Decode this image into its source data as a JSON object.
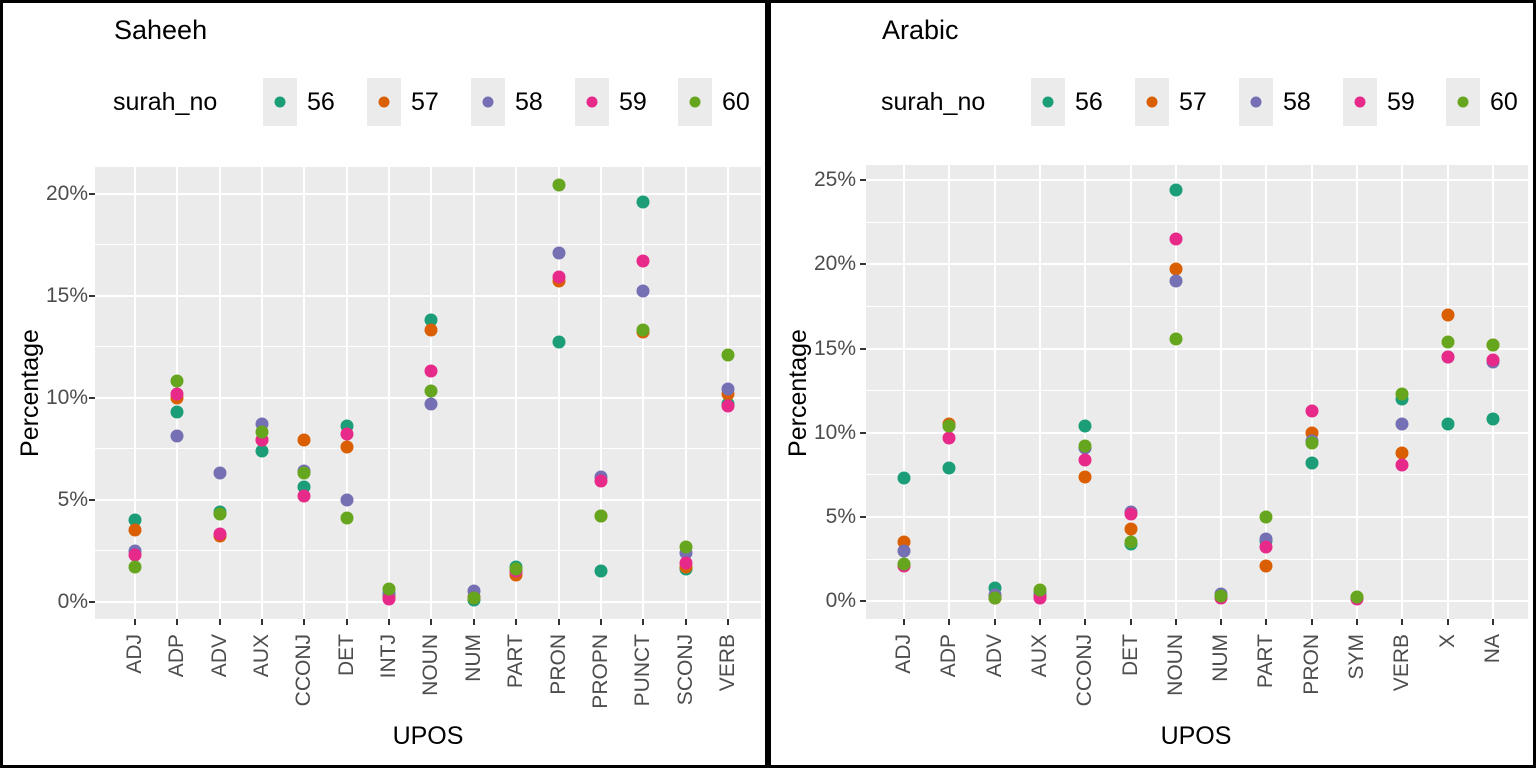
{
  "chart_data": [
    {
      "type": "scatter",
      "title": "Saheeh",
      "xlabel": "UPOS",
      "ylabel": "Percentage",
      "legend_title": "surah_no",
      "legend_position": "top",
      "grid": "on",
      "panel_bg": "#EBEBEB",
      "categories": [
        "ADJ",
        "ADP",
        "ADV",
        "AUX",
        "CCONJ",
        "DET",
        "INTJ",
        "NOUN",
        "NUM",
        "PART",
        "PRON",
        "PROPN",
        "PUNCT",
        "SCONJ",
        "VERB"
      ],
      "y_ticks": [
        "0%",
        "5%",
        "10%",
        "15%",
        "20%"
      ],
      "y_tick_values": [
        0,
        5,
        10,
        15,
        20
      ],
      "y_minor_step": 2.5,
      "ylim": [
        -0.85,
        21.3
      ],
      "series": [
        {
          "name": "56",
          "color": "#1B9E77",
          "values": [
            4.0,
            9.3,
            4.4,
            7.4,
            5.6,
            8.6,
            0.3,
            13.8,
            0.1,
            1.7,
            12.7,
            1.5,
            19.6,
            1.6,
            9.7
          ]
        },
        {
          "name": "57",
          "color": "#D95F02",
          "values": [
            3.5,
            10.0,
            3.2,
            7.9,
            7.9,
            7.6,
            0.3,
            13.3,
            0.25,
            1.3,
            15.7,
            4.2,
            13.2,
            1.7,
            10.2
          ]
        },
        {
          "name": "58",
          "color": "#7570B3",
          "values": [
            2.5,
            8.1,
            6.3,
            8.7,
            6.4,
            5.0,
            0.4,
            9.7,
            0.5,
            1.5,
            17.1,
            6.1,
            15.2,
            2.4,
            10.4
          ]
        },
        {
          "name": "59",
          "color": "#E7298A",
          "values": [
            2.3,
            10.2,
            3.3,
            7.9,
            5.2,
            8.2,
            0.15,
            11.3,
            0.2,
            1.5,
            15.9,
            5.9,
            16.7,
            1.9,
            9.6
          ]
        },
        {
          "name": "60",
          "color": "#66A61E",
          "values": [
            1.7,
            10.8,
            4.3,
            8.3,
            6.3,
            4.1,
            0.6,
            10.3,
            0.2,
            1.6,
            20.4,
            4.2,
            13.3,
            2.7,
            12.1
          ]
        }
      ]
    },
    {
      "type": "scatter",
      "title": "Arabic",
      "xlabel": "UPOS",
      "ylabel": "Percentage",
      "legend_title": "surah_no",
      "legend_position": "top",
      "grid": "on",
      "panel_bg": "#EBEBEB",
      "categories": [
        "ADJ",
        "ADP",
        "ADV",
        "AUX",
        "CCONJ",
        "DET",
        "NOUN",
        "NUM",
        "PART",
        "PRON",
        "SYM",
        "VERB",
        "X",
        "NA"
      ],
      "y_ticks": [
        "0%",
        "5%",
        "10%",
        "15%",
        "20%",
        "25%"
      ],
      "y_tick_values": [
        0,
        5,
        10,
        15,
        20,
        25
      ],
      "y_minor_step": 2.5,
      "ylim": [
        -1.05,
        25.9
      ],
      "series": [
        {
          "name": "56",
          "color": "#1B9E77",
          "values": [
            7.3,
            7.9,
            0.8,
            0.3,
            10.4,
            3.4,
            24.4,
            0.3,
            3.6,
            8.2,
            0.2,
            12.0,
            10.5,
            10.8
          ]
        },
        {
          "name": "57",
          "color": "#D95F02",
          "values": [
            3.5,
            10.5,
            0.2,
            0.3,
            7.4,
            4.3,
            19.7,
            0.3,
            2.1,
            10.0,
            0.2,
            8.8,
            17.0,
            15.2
          ]
        },
        {
          "name": "58",
          "color": "#7570B3",
          "values": [
            3.0,
            10.4,
            0.4,
            0.5,
            9.1,
            5.3,
            19.0,
            0.45,
            3.7,
            9.5,
            0.2,
            10.5,
            14.5,
            14.2
          ]
        },
        {
          "name": "59",
          "color": "#E7298A",
          "values": [
            2.1,
            9.7,
            0.2,
            0.2,
            8.4,
            5.2,
            21.5,
            0.2,
            3.2,
            11.3,
            0.15,
            8.1,
            14.5,
            14.3
          ]
        },
        {
          "name": "60",
          "color": "#66A61E",
          "values": [
            2.2,
            10.4,
            0.2,
            0.7,
            9.2,
            3.5,
            15.6,
            0.3,
            5.0,
            9.4,
            0.25,
            12.3,
            15.4,
            15.2
          ]
        }
      ]
    }
  ]
}
